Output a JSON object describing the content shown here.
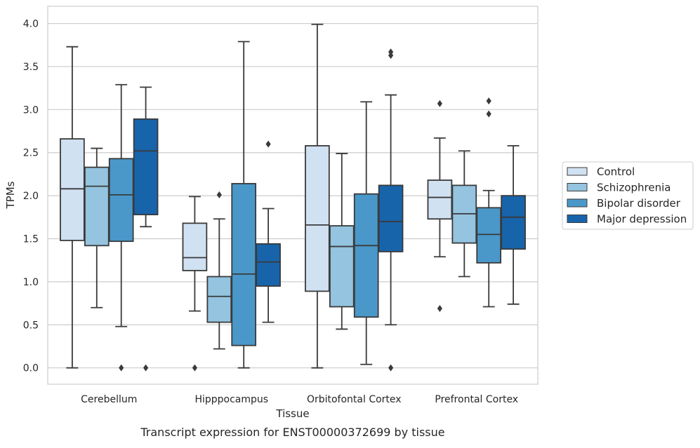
{
  "caption": "Transcript expression for ENST00000372699 by tissue",
  "chart_data": {
    "type": "box",
    "title": "",
    "xlabel": "Tissue",
    "ylabel": "TPMs",
    "ylim": [
      -0.19,
      4.2
    ],
    "yticks": [
      "0.0",
      "0.5",
      "1.0",
      "1.5",
      "2.0",
      "2.5",
      "3.0",
      "3.5",
      "4.0"
    ],
    "grid": "horizontal",
    "legend_position": "right",
    "categories": [
      "Cerebellum",
      "Hipppocampus",
      "Orbitofontal Cortex",
      "Prefrontal Cortex"
    ],
    "series": [
      {
        "name": "Control",
        "color": "#d0e1f2",
        "boxes": [
          {
            "whisker_low": 0.0,
            "q1": 1.48,
            "median": 2.08,
            "q3": 2.66,
            "whisker_high": 3.73,
            "outliers": []
          },
          {
            "whisker_low": 0.66,
            "q1": 1.13,
            "median": 1.28,
            "q3": 1.68,
            "whisker_high": 1.99,
            "outliers": [
              0.0
            ]
          },
          {
            "whisker_low": 0.0,
            "q1": 0.89,
            "median": 1.66,
            "q3": 2.58,
            "whisker_high": 3.99,
            "outliers": []
          },
          {
            "whisker_low": 1.29,
            "q1": 1.73,
            "median": 1.98,
            "q3": 2.18,
            "whisker_high": 2.67,
            "outliers": [
              0.69,
              3.07
            ]
          }
        ]
      },
      {
        "name": "Schizophrenia",
        "color": "#94c4df",
        "boxes": [
          {
            "whisker_low": 0.7,
            "q1": 1.42,
            "median": 2.11,
            "q3": 2.33,
            "whisker_high": 2.55,
            "outliers": []
          },
          {
            "whisker_low": 0.22,
            "q1": 0.53,
            "median": 0.83,
            "q3": 1.06,
            "whisker_high": 1.73,
            "outliers": [
              2.01
            ]
          },
          {
            "whisker_low": 0.45,
            "q1": 0.71,
            "median": 1.41,
            "q3": 1.65,
            "whisker_high": 2.49,
            "outliers": []
          },
          {
            "whisker_low": 1.06,
            "q1": 1.45,
            "median": 1.79,
            "q3": 2.12,
            "whisker_high": 2.52,
            "outliers": []
          }
        ]
      },
      {
        "name": "Bipolar disorder",
        "color": "#4a98c9",
        "boxes": [
          {
            "whisker_low": 0.48,
            "q1": 1.47,
            "median": 2.01,
            "q3": 2.43,
            "whisker_high": 3.29,
            "outliers": [
              0.0
            ]
          },
          {
            "whisker_low": 0.0,
            "q1": 0.26,
            "median": 1.09,
            "q3": 2.14,
            "whisker_high": 3.79,
            "outliers": []
          },
          {
            "whisker_low": 0.04,
            "q1": 0.59,
            "median": 1.42,
            "q3": 2.02,
            "whisker_high": 3.09,
            "outliers": []
          },
          {
            "whisker_low": 0.71,
            "q1": 1.22,
            "median": 1.55,
            "q3": 1.86,
            "whisker_high": 2.06,
            "outliers": [
              2.95,
              3.1
            ]
          }
        ]
      },
      {
        "name": "Major depression",
        "color": "#1764ab",
        "boxes": [
          {
            "whisker_low": 1.64,
            "q1": 1.78,
            "median": 2.52,
            "q3": 2.89,
            "whisker_high": 3.26,
            "outliers": [
              0.0
            ]
          },
          {
            "whisker_low": 0.53,
            "q1": 0.95,
            "median": 1.23,
            "q3": 1.44,
            "whisker_high": 1.85,
            "outliers": [
              2.6
            ]
          },
          {
            "whisker_low": 0.5,
            "q1": 1.35,
            "median": 1.7,
            "q3": 2.12,
            "whisker_high": 3.17,
            "outliers": [
              0.0,
              3.63,
              3.67
            ]
          },
          {
            "whisker_low": 0.74,
            "q1": 1.38,
            "median": 1.75,
            "q3": 2.0,
            "whisker_high": 2.58,
            "outliers": []
          }
        ]
      }
    ]
  }
}
